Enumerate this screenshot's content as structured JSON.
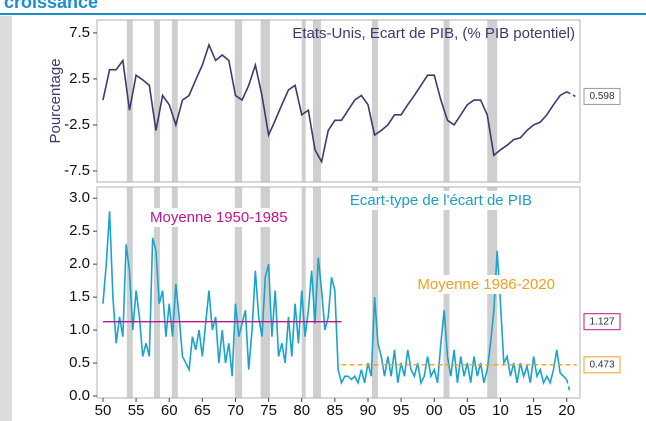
{
  "header": {
    "title": "croissance"
  },
  "chart_data": [
    {
      "type": "line",
      "annotation": "Etats-Unis, Ecart de  PIB, (% PIB potentiel)",
      "y_label": "Pourcentage",
      "color": "#3b3b6e",
      "xlim": [
        1949.1,
        2022
      ],
      "ylim": [
        -8.7,
        8.9
      ],
      "yticks": [
        7.5,
        2.5,
        -2.5,
        -7.5
      ],
      "recessions": [
        [
          1953.6,
          1954.5
        ],
        [
          1957.7,
          1958.6
        ],
        [
          1960.4,
          1961.3
        ],
        [
          1969.9,
          1971
        ],
        [
          1973.8,
          1975.2
        ],
        [
          1980,
          1980.6
        ],
        [
          1981.7,
          1982.9
        ],
        [
          1990.6,
          1991.5
        ],
        [
          2001.4,
          2002.3
        ],
        [
          2008,
          2009.5
        ]
      ],
      "x": [
        1950,
        1951,
        1952,
        1953,
        1954,
        1955,
        1956,
        1957,
        1958,
        1959,
        1960,
        1961,
        1962,
        1963,
        1964,
        1965,
        1966,
        1967,
        1968,
        1969,
        1970,
        1971,
        1972,
        1973,
        1974,
        1975,
        1976,
        1977,
        1978,
        1979,
        1980,
        1981,
        1982,
        1983,
        1984,
        1985,
        1986,
        1987,
        1988,
        1989,
        1990,
        1991,
        1992,
        1993,
        1994,
        1995,
        1996,
        1997,
        1998,
        1999,
        2000,
        2001,
        2002,
        2003,
        2004,
        2005,
        2006,
        2007,
        2008,
        2009,
        2010,
        2011,
        2012,
        2013,
        2014,
        2015,
        2016,
        2017,
        2018,
        2019,
        2020
      ],
      "values": [
        0.2,
        3.5,
        3.5,
        4.5,
        -0.9,
        2.9,
        2.4,
        1.8,
        -3.1,
        0.7,
        -0.3,
        -2.5,
        0.2,
        0.7,
        2.4,
        4.0,
        6.2,
        4.5,
        5.1,
        4.5,
        0.7,
        0.2,
        1.8,
        4.0,
        0.7,
        -3.6,
        -2.0,
        -0.3,
        1.3,
        1.8,
        -1.4,
        -0.9,
        -5.2,
        -6.5,
        -3.1,
        -2.0,
        -2.0,
        -0.9,
        0.2,
        0.7,
        -0.3,
        -3.6,
        -3.1,
        -2.5,
        -1.4,
        -1.4,
        -0.3,
        0.7,
        1.8,
        2.9,
        2.9,
        0.2,
        -2.0,
        -2.5,
        -1.4,
        -0.3,
        0.2,
        0.2,
        -1.4,
        -5.8,
        -5.2,
        -4.7,
        -4.1,
        -3.9,
        -3.1,
        -2.5,
        -2.2,
        -1.4,
        -0.3,
        0.7,
        1.1
      ],
      "projection": {
        "x": [
          2020,
          2021.3
        ],
        "values": [
          1.1,
          0.598
        ]
      }
    },
    {
      "type": "line",
      "annotation": "Ecart-type de l'écart de PIB",
      "color": "#1aa3cc",
      "xlim": [
        1949.1,
        2022
      ],
      "ylim": [
        -0.03,
        3.17
      ],
      "yticks": [
        {
          "value": 0,
          "label": "0.0"
        },
        0.5,
        {
          "value": 1,
          "label": "1.0"
        },
        1.5,
        {
          "value": 2,
          "label": "2.0"
        },
        2.5,
        {
          "value": 3,
          "label": "3.0"
        }
      ],
      "xticks": [
        {
          "value": 1950,
          "label": "50"
        },
        {
          "value": 1955,
          "label": "55"
        },
        {
          "value": 1960,
          "label": "60"
        },
        {
          "value": 1965,
          "label": "65"
        },
        {
          "value": 1970,
          "label": "70"
        },
        {
          "value": 1975,
          "label": "75"
        },
        {
          "value": 1980,
          "label": "80"
        },
        {
          "value": 1985,
          "label": "85"
        },
        {
          "value": 1990,
          "label": "90"
        },
        {
          "value": 1995,
          "label": "95"
        },
        {
          "value": 2000,
          "label": "00"
        },
        {
          "value": 2005,
          "label": "05"
        },
        {
          "value": 2010,
          "label": "10"
        },
        {
          "value": 2015,
          "label": "15"
        },
        {
          "value": 2020,
          "label": "20"
        }
      ],
      "x": [
        1950,
        1950.5,
        1951,
        1951.5,
        1952,
        1952.5,
        1953,
        1953.5,
        1954,
        1954.5,
        1955,
        1955.5,
        1956,
        1956.5,
        1957,
        1957.5,
        1958,
        1958.5,
        1959,
        1959.5,
        1960,
        1960.5,
        1961,
        1961.5,
        1962,
        1962.5,
        1963,
        1963.5,
        1964,
        1964.5,
        1965,
        1965.5,
        1966,
        1966.5,
        1967,
        1967.5,
        1968,
        1968.5,
        1969,
        1969.5,
        1970,
        1970.5,
        1971,
        1971.5,
        1972,
        1972.5,
        1973,
        1973.5,
        1974,
        1974.5,
        1975,
        1975.5,
        1976,
        1976.5,
        1977,
        1977.5,
        1978,
        1978.5,
        1979,
        1979.5,
        1980,
        1980.5,
        1981,
        1981.5,
        1982,
        1982.5,
        1983,
        1983.5,
        1984,
        1984.5,
        1985,
        1985.5,
        1986,
        1986.5,
        1987,
        1987.5,
        1988,
        1988.5,
        1989,
        1989.5,
        1990,
        1990.5,
        1991,
        1991.5,
        1992,
        1992.5,
        1993,
        1993.5,
        1994,
        1994.5,
        1995,
        1995.5,
        1996,
        1996.5,
        1997,
        1997.5,
        1998,
        1998.5,
        1999,
        1999.5,
        2000,
        2000.5,
        2001,
        2001.5,
        2002,
        2002.5,
        2003,
        2003.5,
        2004,
        2004.5,
        2005,
        2005.5,
        2006,
        2006.5,
        2007,
        2007.5,
        2008,
        2008.5,
        2009,
        2009.5,
        2010,
        2010.5,
        2011,
        2011.5,
        2012,
        2012.5,
        2013,
        2013.5,
        2014,
        2014.5,
        2015,
        2015.5,
        2016,
        2016.5,
        2017,
        2017.5,
        2018,
        2018.5,
        2019,
        2019.5,
        2020
      ],
      "values": [
        1.4,
        2.0,
        2.8,
        1.5,
        0.8,
        1.2,
        0.9,
        2.3,
        1.9,
        1.0,
        1.6,
        1.2,
        0.6,
        0.8,
        0.6,
        2.4,
        2.2,
        1.4,
        1.6,
        0.9,
        1.4,
        0.9,
        1.7,
        1.2,
        0.6,
        0.5,
        0.4,
        0.9,
        0.7,
        1.0,
        0.6,
        1.1,
        1.6,
        1.0,
        1.2,
        0.5,
        1.0,
        0.5,
        0.8,
        0.3,
        1.4,
        0.9,
        1.1,
        1.3,
        0.4,
        1.0,
        1.9,
        1.2,
        0.9,
        1.8,
        2.0,
        0.9,
        1.6,
        0.6,
        0.8,
        0.5,
        1.2,
        0.6,
        1.4,
        0.8,
        1.6,
        0.9,
        1.3,
        1.9,
        1.1,
        2.1,
        1.6,
        1.0,
        1.2,
        1.8,
        1.6,
        0.4,
        0.2,
        0.3,
        0.3,
        0.25,
        0.3,
        0.2,
        0.4,
        0.2,
        0.5,
        0.3,
        1.5,
        0.8,
        0.6,
        0.3,
        0.6,
        0.3,
        0.7,
        0.2,
        0.5,
        0.3,
        0.7,
        0.4,
        0.3,
        0.5,
        0.2,
        0.3,
        0.6,
        0.3,
        0.4,
        0.2,
        0.8,
        1.3,
        0.6,
        0.3,
        0.7,
        0.2,
        0.6,
        0.3,
        0.5,
        0.2,
        0.6,
        0.3,
        0.5,
        0.2,
        0.4,
        0.8,
        1.3,
        2.2,
        1.4,
        0.5,
        0.6,
        0.3,
        0.5,
        0.2,
        0.5,
        0.3,
        0.45,
        0.2,
        0.6,
        0.3,
        0.4,
        0.2,
        0.3,
        0.2,
        0.4,
        0.7,
        0.35,
        0.3,
        0.25
      ],
      "projection": {
        "x": [
          2020,
          2020.5
        ],
        "values": [
          0.25,
          0.05
        ]
      },
      "mean_lines": [
        {
          "name": "Moyenne 1950-1985",
          "color": "#c0168c",
          "x": [
            1950,
            1986
          ],
          "value": 1.127,
          "style": "solid"
        },
        {
          "name": "Moyenne 1986-2020",
          "color": "#f0a020",
          "x": [
            1986,
            2021.5
          ],
          "value": 0.473,
          "style": "dashed"
        }
      ]
    }
  ]
}
